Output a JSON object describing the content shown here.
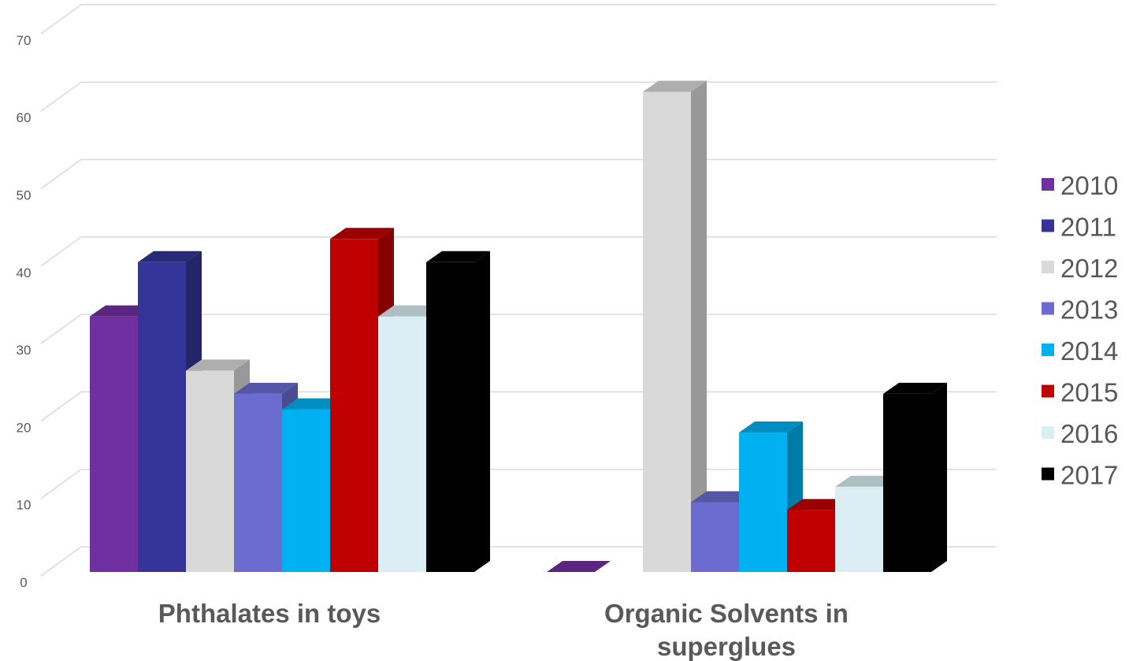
{
  "chart_data": {
    "type": "bar",
    "subtype": "3d-clustered-column",
    "title": "",
    "xlabel": "",
    "ylabel": "",
    "ylim": [
      0,
      70
    ],
    "yticks": [
      "0",
      "10",
      "20",
      "30",
      "40",
      "50",
      "60",
      "70"
    ],
    "grid": true,
    "legend_position": "right",
    "categories": [
      [
        "Phthalates in toys"
      ],
      [
        "Organic Solvents in",
        "superglues"
      ]
    ],
    "series": [
      {
        "name": "2010",
        "color": "#7030A0",
        "values": [
          33,
          0
        ]
      },
      {
        "name": "2011",
        "color": "#333399",
        "values": [
          40,
          null
        ]
      },
      {
        "name": "2012",
        "color": "#D9D9D9",
        "values": [
          26,
          62
        ]
      },
      {
        "name": "2013",
        "color": "#6B6BD0",
        "values": [
          23,
          9
        ]
      },
      {
        "name": "2014",
        "color": "#00B0F0",
        "values": [
          21,
          18
        ]
      },
      {
        "name": "2015",
        "color": "#C00000",
        "values": [
          43,
          8
        ]
      },
      {
        "name": "2016",
        "color": "#DAEEF3",
        "values": [
          33,
          11
        ]
      },
      {
        "name": "2017",
        "color": "#000000",
        "values": [
          40,
          23
        ]
      }
    ]
  }
}
